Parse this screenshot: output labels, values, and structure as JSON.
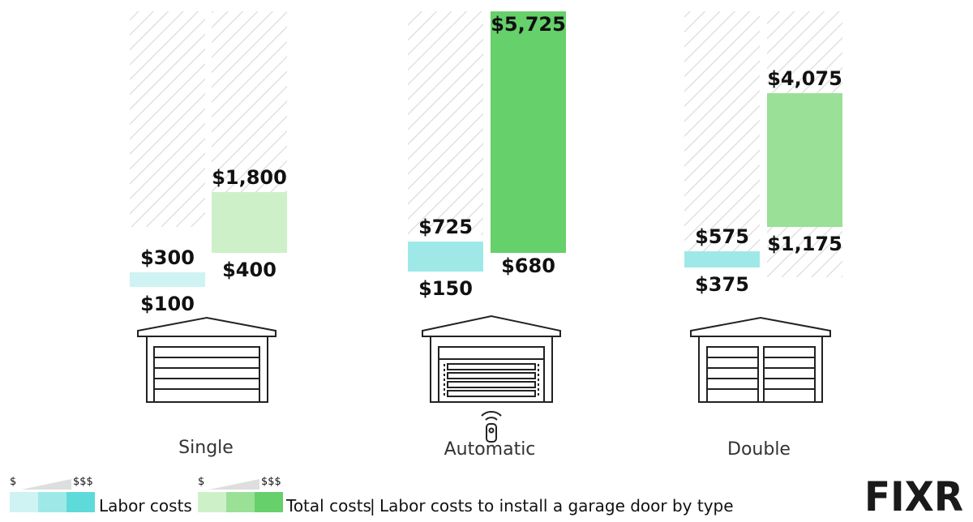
{
  "chart_data": {
    "type": "bar",
    "title": "Labor costs to install a garage door by type",
    "categories": [
      "Single",
      "Automatic",
      "Double"
    ],
    "series": [
      {
        "name": "Labor costs",
        "ranges": [
          [
            100,
            300
          ],
          [
            150,
            725
          ],
          [
            375,
            575
          ]
        ],
        "colors": [
          "#cef3f2",
          "#9ee9e8",
          "#9ee9e8"
        ]
      },
      {
        "name": "Total costs",
        "ranges": [
          [
            400,
            1800
          ],
          [
            680,
            5725
          ],
          [
            1175,
            4075
          ]
        ],
        "colors": [
          "#cdf0c9",
          "#66d06a",
          "#9ae097"
        ]
      }
    ],
    "labels": {
      "labor": [
        [
          "$100",
          "$300"
        ],
        [
          "$150",
          "$725"
        ],
        [
          "$375",
          "$575"
        ]
      ],
      "total": [
        [
          "$400",
          "$1,800"
        ],
        [
          "$680",
          "$5,725"
        ],
        [
          "$1,175",
          "$4,075"
        ]
      ]
    }
  },
  "legend": {
    "labor_label": "Labor costs",
    "total_label": "Total costs",
    "separator": "|",
    "caption": "Labor costs to install a garage door by type",
    "low_symbol": "$",
    "high_symbol": "$$$",
    "labor_shades": [
      "#cef3f2",
      "#9ee9e8",
      "#5fdada"
    ],
    "total_shades": [
      "#cdf0c9",
      "#9ae097",
      "#66d06a"
    ]
  },
  "logo": {
    "text": "FIXR"
  },
  "icons": [
    "single-garage-icon",
    "automatic-garage-icon",
    "remote-icon",
    "double-garage-icon"
  ]
}
